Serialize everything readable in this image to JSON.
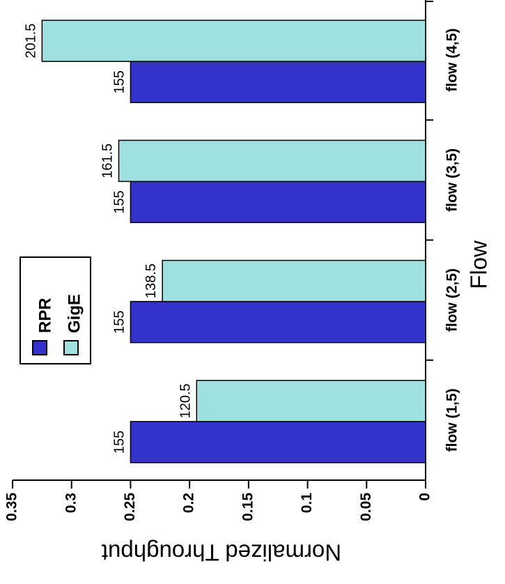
{
  "chart_data": {
    "type": "bar",
    "orientation": "rotated-90",
    "categories": [
      "flow (1,5)",
      "flow (2,5)",
      "flow (3,5)",
      "flow (4,5)"
    ],
    "series": [
      {
        "name": "RPR",
        "values": [
          0.25,
          0.25,
          0.25,
          0.25
        ],
        "labels": [
          "155",
          "155",
          "155",
          "155"
        ]
      },
      {
        "name": "GigE",
        "values": [
          0.194,
          0.223,
          0.26,
          0.325
        ],
        "labels": [
          "120.5",
          "138.5",
          "161.5",
          "201.5"
        ]
      }
    ],
    "xlabel": "Flow",
    "ylabel": "Normalized Throughput",
    "ylim": [
      0,
      0.35
    ],
    "yticks": [
      "0",
      "0.05",
      "0.1",
      "0.15",
      "0.2",
      "0.25",
      "0.3",
      "0.35"
    ],
    "grid": false,
    "legend": "inside"
  },
  "colors": {
    "RPR": "#3333cc",
    "GigE": "#9fe0e0",
    "axis": "#000000"
  }
}
